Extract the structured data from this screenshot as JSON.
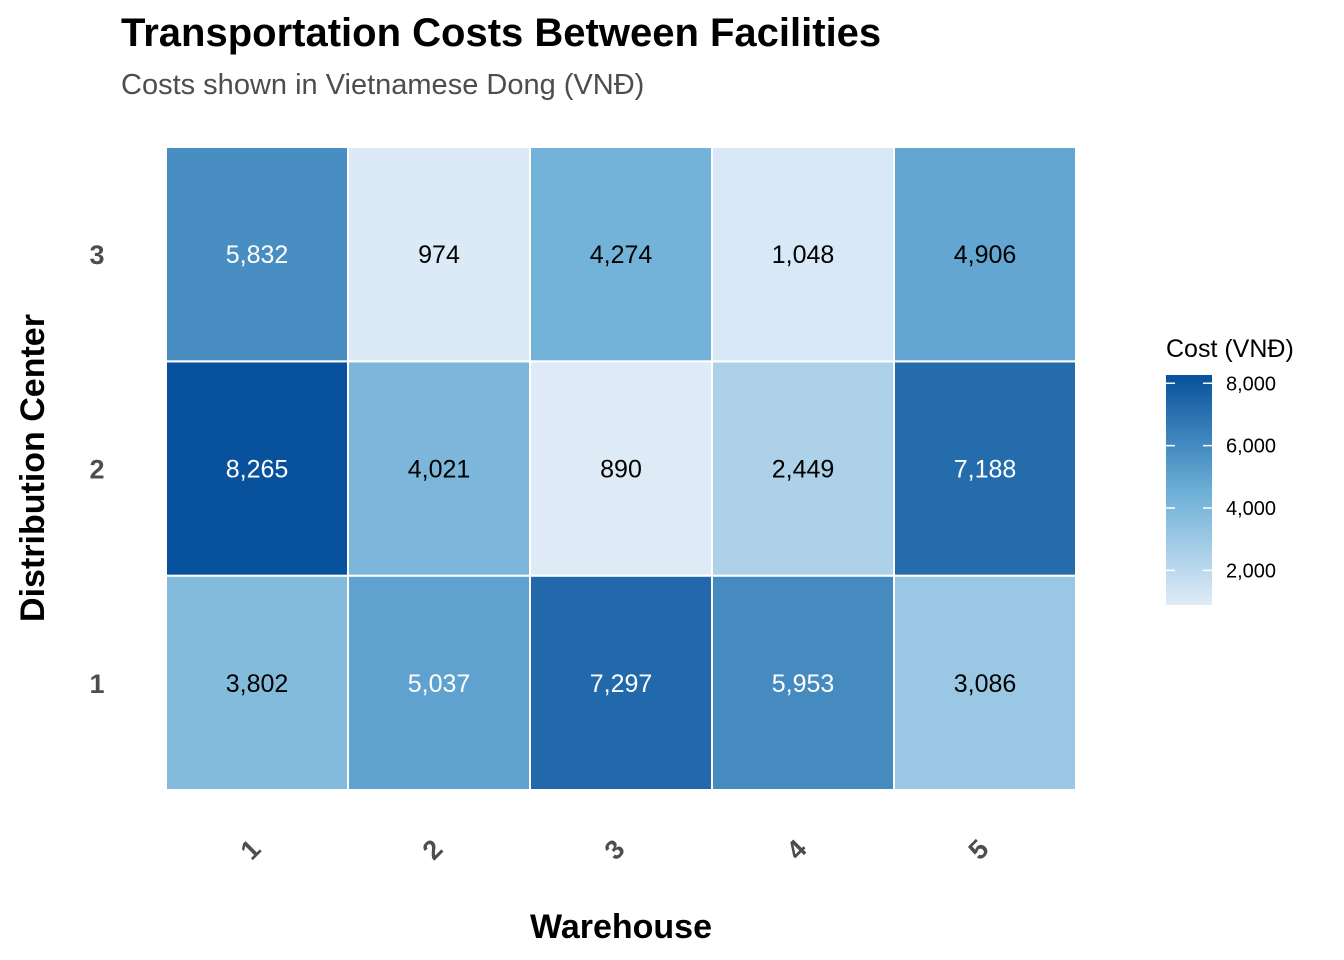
{
  "chart_data": {
    "type": "heatmap",
    "title": "Transportation Costs Between Facilities",
    "subtitle": "Costs shown in Vietnamese Dong (VNĐ)",
    "xlabel": "Warehouse",
    "ylabel": "Distribution Center",
    "x_categories": [
      "1",
      "2",
      "3",
      "4",
      "5"
    ],
    "y_categories": [
      "1",
      "2",
      "3"
    ],
    "values": [
      [
        3802,
        5037,
        7297,
        5953,
        3086
      ],
      [
        8265,
        4021,
        890,
        2449,
        7188
      ],
      [
        5832,
        974,
        4274,
        1048,
        4906
      ]
    ],
    "value_labels": [
      [
        "3,802",
        "5,037",
        "7,297",
        "5,953",
        "3,086"
      ],
      [
        "8,265",
        "4,021",
        "890",
        "2,449",
        "7,188"
      ],
      [
        "5,832",
        "974",
        "4,274",
        "1,048",
        "4,906"
      ]
    ],
    "legend": {
      "title": "Cost (VNĐ)",
      "ticks": [
        2000,
        4000,
        6000,
        8000
      ],
      "tick_labels": [
        "2,000",
        "4,000",
        "6,000",
        "8,000"
      ],
      "range": [
        890,
        8265
      ],
      "position": "right"
    },
    "colors": {
      "low": "#deebf7",
      "mid": "#6baed6",
      "high": "#08519c",
      "grid": "#ffffff"
    },
    "grid": false
  }
}
